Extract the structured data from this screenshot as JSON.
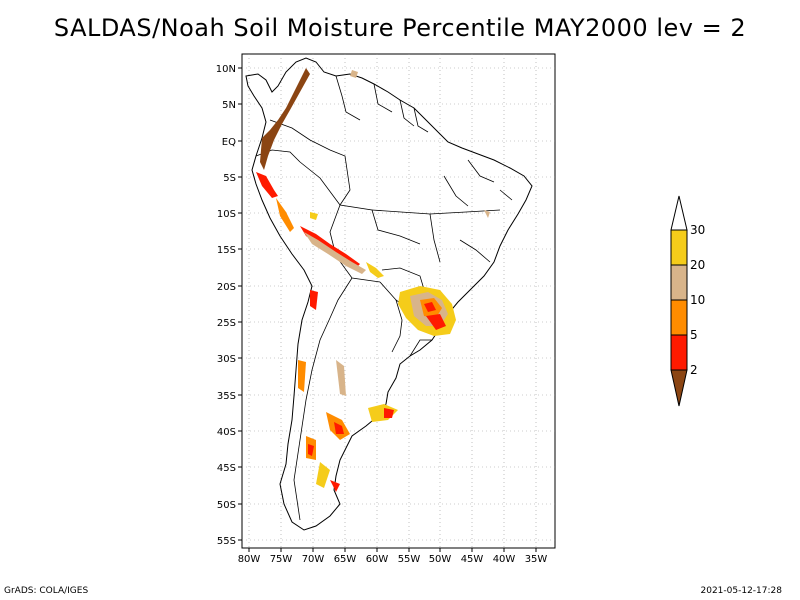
{
  "title": "SALDAS/Noah Soil Moisture Percentile MAY2000 lev = 2",
  "footer": {
    "left": "GrADS: COLA/IGES",
    "right": "2021-05-12-17:28"
  },
  "map": {
    "lon_ticks": [
      "80W",
      "75W",
      "70W",
      "65W",
      "60W",
      "55W",
      "50W",
      "45W",
      "40W",
      "35W"
    ],
    "lat_ticks": [
      "10N",
      "5N",
      "EQ",
      "5S",
      "10S",
      "15S",
      "20S",
      "25S",
      "30S",
      "35S",
      "40S",
      "45S",
      "50S",
      "55S"
    ]
  },
  "legend": {
    "labels": [
      "30",
      "20",
      "10",
      "5",
      "2"
    ],
    "colors": {
      "above_30": "#ffffff",
      "c20_30": "#f5cc1a",
      "c10_20": "#d8b48a",
      "c5_10": "#ff8c00",
      "c2_5": "#ff1a00",
      "below_2": "#8b4513"
    }
  }
}
